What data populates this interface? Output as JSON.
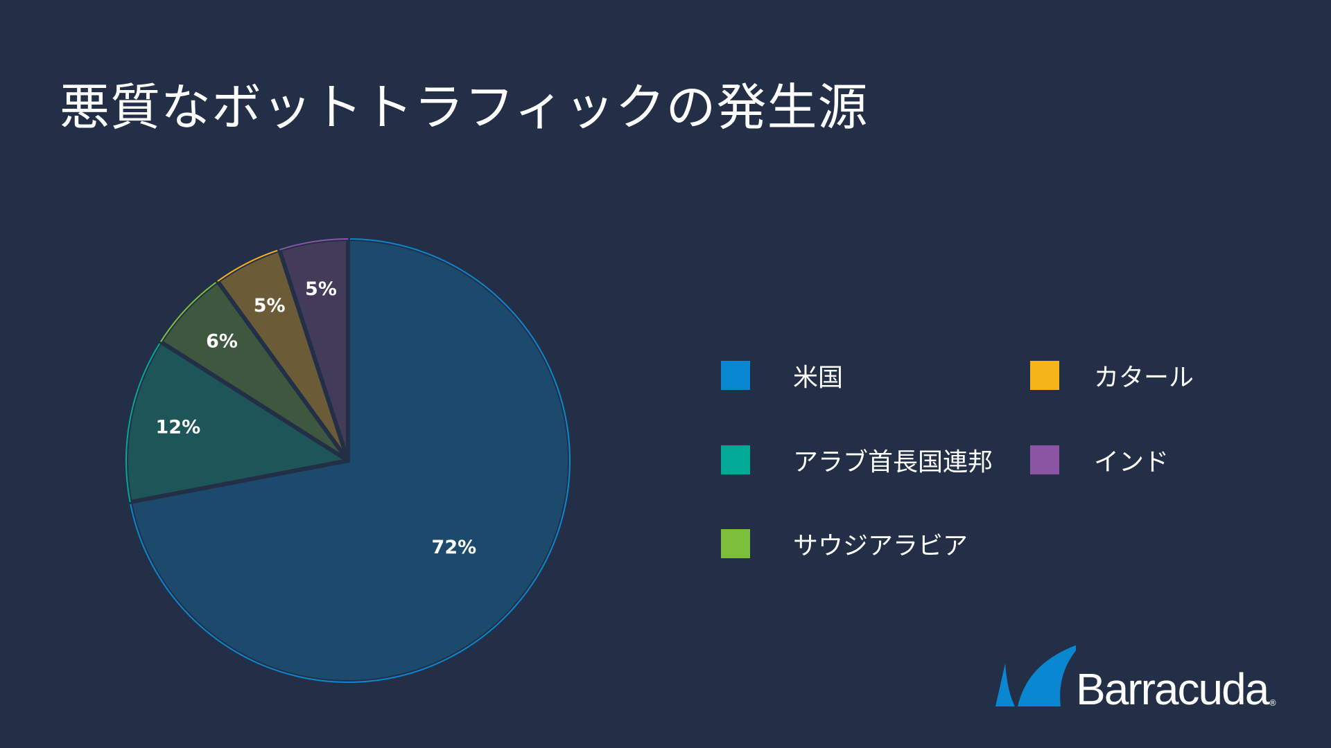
{
  "slide": {
    "title": "悪質なボットトラフィックの発生源",
    "background": "#232f46"
  },
  "chart_data": {
    "type": "pie",
    "title": "悪質なボットトラフィックの発生源",
    "categories": [
      "米国",
      "アラブ首長国連邦",
      "サウジアラビア",
      "カタール",
      "インド"
    ],
    "values": [
      72,
      12,
      6,
      5,
      5
    ],
    "labels": [
      "72%",
      "12%",
      "6%",
      "5%",
      "5%"
    ],
    "colors": [
      "#0a87d1",
      "#00aa96",
      "#7cbf3c",
      "#f5b41a",
      "#8c55a4"
    ],
    "slice_fills": [
      "#1c4a6c",
      "#1d5558",
      "#3d583f",
      "#6b5b37",
      "#423b5a"
    ],
    "start": "12 o'clock",
    "direction": "clockwise",
    "legend_position": "right"
  },
  "legend": {
    "items": [
      {
        "label": "米国",
        "color": "#0a87d1"
      },
      {
        "label": "アラブ首長国連邦",
        "color": "#00aa96"
      },
      {
        "label": "サウジアラビア",
        "color": "#7cbf3c"
      },
      {
        "label": "カタール",
        "color": "#f5b41a"
      },
      {
        "label": "インド",
        "color": "#8c55a4"
      }
    ]
  },
  "logo": {
    "text": "Barracuda",
    "registered": "®",
    "color": "#0a87d1"
  }
}
